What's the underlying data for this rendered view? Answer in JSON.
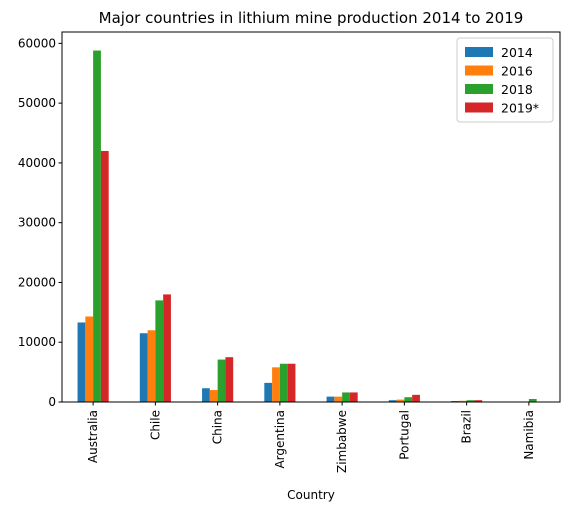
{
  "chart_data": {
    "type": "bar",
    "title": "Major countries in lithium mine production 2014 to 2019",
    "xlabel": "Country",
    "ylabel": "",
    "categories": [
      "Australia",
      "Chile",
      "China",
      "Argentina",
      "Zimbabwe",
      "Portugal",
      "Brazil",
      "Namibia"
    ],
    "series": [
      {
        "name": "2014",
        "color": "#1f77b4",
        "values": [
          13300,
          11500,
          2300,
          3200,
          900,
          300,
          160,
          0
        ]
      },
      {
        "name": "2016",
        "color": "#ff7f0e",
        "values": [
          14300,
          12000,
          2000,
          5800,
          900,
          400,
          200,
          0
        ]
      },
      {
        "name": "2018",
        "color": "#2ca02c",
        "values": [
          58800,
          17000,
          7100,
          6400,
          1600,
          800,
          300,
          500
        ]
      },
      {
        "name": "2019*",
        "color": "#d62728",
        "values": [
          42000,
          18000,
          7500,
          6400,
          1600,
          1200,
          300,
          0
        ]
      }
    ],
    "yticks": [
      0,
      10000,
      20000,
      30000,
      40000,
      50000,
      60000
    ],
    "ylim": [
      0,
      61900
    ],
    "grid": false,
    "legend_position": "top-right"
  }
}
